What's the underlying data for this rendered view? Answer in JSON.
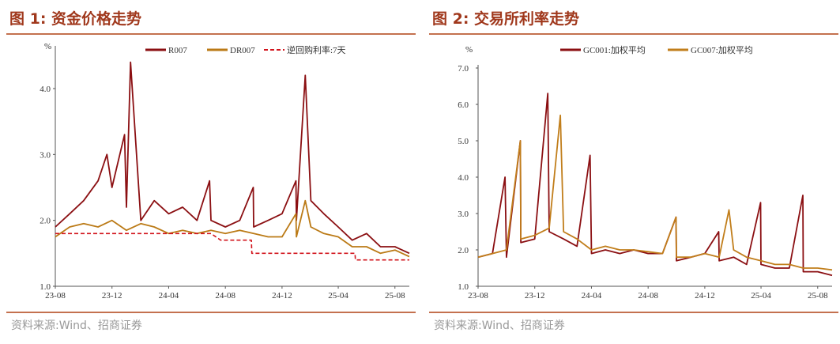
{
  "colors": {
    "title": "#a0381c",
    "rule": "#c4714f",
    "r007": "#8b0f12",
    "dr007": "#bb7a16",
    "repo7d": "#d2141c",
    "gc001": "#8b0f12",
    "gc007": "#c17e1b"
  },
  "figures": [
    {
      "title": "图 1:  资金价格走势",
      "source": "资料来源:Wind、招商证券",
      "unit": "%",
      "x_ticks": [
        "23-08",
        "23-12",
        "24-04",
        "24-08",
        "24-12",
        "25-04",
        "25-08"
      ],
      "y_ticks": [
        "1.0",
        "2.0",
        "3.0",
        "4.0"
      ],
      "legend": [
        "R007",
        "DR007",
        "逆回购利率:7天"
      ]
    },
    {
      "title": "图 2:  交易所利率走势",
      "source": "资料来源:Wind、招商证券",
      "unit": "%",
      "x_ticks": [
        "23-08",
        "23-12",
        "24-04",
        "24-08",
        "24-12",
        "25-04",
        "25-08"
      ],
      "y_ticks": [
        "1.0",
        "2.0",
        "3.0",
        "4.0",
        "5.0",
        "6.0",
        "7.0"
      ],
      "legend": [
        "GC001:加权平均",
        "GC007:加权平均"
      ]
    }
  ],
  "chart_data": [
    {
      "type": "line",
      "title": "资金价格走势",
      "ylabel": "%",
      "ylim": [
        1.0,
        4.6
      ],
      "xlim": [
        "2023-08",
        "2025-09"
      ],
      "x_ticks": [
        "23-08",
        "23-12",
        "24-04",
        "24-08",
        "24-12",
        "25-04",
        "25-08"
      ],
      "series": [
        {
          "name": "R007",
          "x": [
            "2023-08",
            "2023-09",
            "2023-10",
            "2023-11",
            "2023-11-20",
            "2023-12",
            "2023-12-28",
            "2024-01",
            "2024-01-10",
            "2024-02",
            "2024-03",
            "2024-04",
            "2024-05",
            "2024-06",
            "2024-06-28",
            "2024-07",
            "2024-08",
            "2024-09",
            "2024-09-30",
            "2024-10",
            "2024-11",
            "2024-12",
            "2024-12-31",
            "2025-01",
            "2025-01-20",
            "2025-02",
            "2025-03",
            "2025-04",
            "2025-05",
            "2025-06",
            "2025-07",
            "2025-08",
            "2025-09"
          ],
          "values": [
            1.9,
            2.1,
            2.3,
            2.6,
            3.0,
            2.5,
            3.3,
            2.2,
            4.4,
            2.0,
            2.3,
            2.1,
            2.2,
            2.0,
            2.6,
            2.0,
            1.9,
            2.0,
            2.5,
            1.9,
            2.0,
            2.1,
            2.6,
            2.0,
            4.2,
            2.3,
            2.1,
            1.9,
            1.7,
            1.8,
            1.6,
            1.6,
            1.5
          ]
        },
        {
          "name": "DR007",
          "x": [
            "2023-08",
            "2023-09",
            "2023-10",
            "2023-11",
            "2023-12",
            "2024-01",
            "2024-02",
            "2024-03",
            "2024-04",
            "2024-05",
            "2024-06",
            "2024-07",
            "2024-08",
            "2024-09",
            "2024-10",
            "2024-11",
            "2024-12",
            "2024-12-31",
            "2025-01",
            "2025-01-20",
            "2025-02",
            "2025-03",
            "2025-04",
            "2025-05",
            "2025-06",
            "2025-07",
            "2025-08",
            "2025-09"
          ],
          "values": [
            1.75,
            1.9,
            1.95,
            1.9,
            2.0,
            1.85,
            1.95,
            1.9,
            1.8,
            1.85,
            1.8,
            1.85,
            1.8,
            1.85,
            1.8,
            1.75,
            1.75,
            2.1,
            1.75,
            2.3,
            1.9,
            1.8,
            1.75,
            1.6,
            1.6,
            1.5,
            1.55,
            1.45
          ]
        },
        {
          "name": "逆回购利率:7天",
          "x": [
            "2023-08",
            "2024-07",
            "2024-07-22",
            "2024-09-26",
            "2024-09-27",
            "2025-05-07",
            "2025-05-08",
            "2025-09"
          ],
          "values": [
            1.8,
            1.8,
            1.7,
            1.7,
            1.5,
            1.5,
            1.4,
            1.4
          ]
        }
      ]
    },
    {
      "type": "line",
      "title": "交易所利率走势",
      "ylabel": "%",
      "ylim": [
        1.0,
        7.0
      ],
      "xlim": [
        "2023-08",
        "2025-09"
      ],
      "x_ticks": [
        "23-08",
        "23-12",
        "24-04",
        "24-08",
        "24-12",
        "25-04",
        "25-08"
      ],
      "series": [
        {
          "name": "GC001:加权平均",
          "x": [
            "2023-08",
            "2023-09",
            "2023-09-28",
            "2023-10",
            "2023-10-31",
            "2023-11",
            "2023-12",
            "2023-12-29",
            "2024-01",
            "2024-02",
            "2024-03",
            "2024-03-29",
            "2024-04",
            "2024-05",
            "2024-06",
            "2024-07",
            "2024-08",
            "2024-09",
            "2024-09-30",
            "2024-10",
            "2024-11",
            "2024-12",
            "2024-12-31",
            "2025-01",
            "2025-02",
            "2025-03",
            "2025-03-31",
            "2025-04",
            "2025-05",
            "2025-06",
            "2025-06-30",
            "2025-07",
            "2025-08",
            "2025-09"
          ],
          "values": [
            1.8,
            1.9,
            4.0,
            1.8,
            5.0,
            2.2,
            2.3,
            6.3,
            2.5,
            2.3,
            2.1,
            4.6,
            1.9,
            2.0,
            1.9,
            2.0,
            1.9,
            1.9,
            2.9,
            1.7,
            1.8,
            1.9,
            2.5,
            1.7,
            1.8,
            1.6,
            3.3,
            1.6,
            1.5,
            1.5,
            3.5,
            1.4,
            1.4,
            1.3
          ]
        },
        {
          "name": "GC007:加权平均",
          "x": [
            "2023-08",
            "2023-09",
            "2023-10",
            "2023-10-31",
            "2023-11",
            "2023-12",
            "2024-01",
            "2024-01-25",
            "2024-02",
            "2024-03",
            "2024-04",
            "2024-05",
            "2024-06",
            "2024-07",
            "2024-08",
            "2024-09",
            "2024-09-30",
            "2024-10",
            "2024-11",
            "2024-12",
            "2025-01",
            "2025-01-22",
            "2025-02",
            "2025-03",
            "2025-04",
            "2025-05",
            "2025-06",
            "2025-07",
            "2025-08",
            "2025-09"
          ],
          "values": [
            1.8,
            1.9,
            2.0,
            5.0,
            2.3,
            2.4,
            2.6,
            5.7,
            2.5,
            2.3,
            2.0,
            2.1,
            2.0,
            2.0,
            1.95,
            1.9,
            2.9,
            1.8,
            1.8,
            1.9,
            1.8,
            3.1,
            2.0,
            1.8,
            1.7,
            1.6,
            1.6,
            1.5,
            1.5,
            1.45
          ]
        }
      ]
    }
  ]
}
